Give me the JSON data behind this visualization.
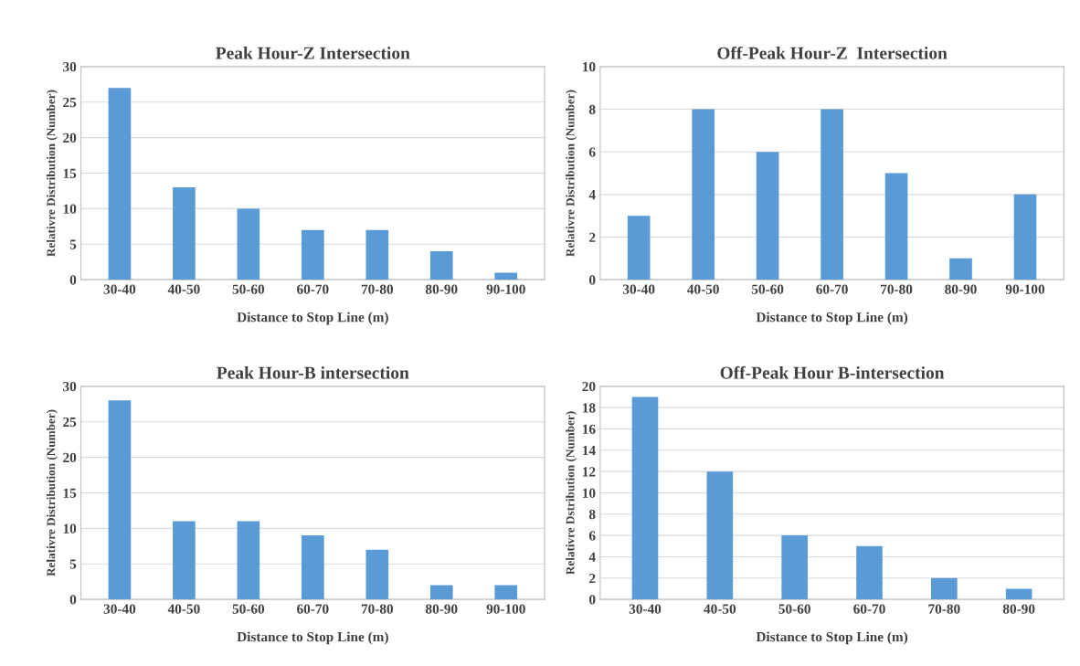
{
  "chart_data": [
    {
      "type": "bar",
      "title": "Peak Hour-Z Intersection",
      "xlabel": "Distance to Stop Line (m)",
      "ylabel": "Relativre Distribution (Number)",
      "categories": [
        "30-40",
        "40-50",
        "50-60",
        "60-70",
        "70-80",
        "80-90",
        "90-100"
      ],
      "values": [
        27,
        13,
        10,
        7,
        7,
        4,
        1
      ],
      "color": "#5b9bd5",
      "ylim": [
        0,
        30
      ],
      "yticks": [
        0,
        5,
        10,
        15,
        20,
        25,
        30
      ],
      "grid": "y"
    },
    {
      "type": "bar",
      "title": "Off-Peak Hour-Z  Intersection",
      "xlabel": "Distance to Stop Line (m)",
      "ylabel": "Relativre Distribution (Number)",
      "categories": [
        "30-40",
        "40-50",
        "50-60",
        "60-70",
        "70-80",
        "80-90",
        "90-100"
      ],
      "values": [
        3,
        8,
        6,
        8,
        5,
        1,
        4
      ],
      "color": "#5b9bd5",
      "ylim": [
        0,
        10
      ],
      "yticks": [
        0,
        2,
        4,
        6,
        8,
        10
      ],
      "grid": "y"
    },
    {
      "type": "bar",
      "title": "Peak Hour-B intersection",
      "xlabel": "Distance to Stop Line (m)",
      "ylabel": "Relativre Distribution (Number)",
      "categories": [
        "30-40",
        "40-50",
        "50-60",
        "60-70",
        "70-80",
        "80-90",
        "90-100"
      ],
      "values": [
        28,
        11,
        11,
        9,
        7,
        2,
        2
      ],
      "color": "#5b9bd5",
      "ylim": [
        0,
        30
      ],
      "yticks": [
        0,
        5,
        10,
        15,
        20,
        25,
        30
      ],
      "grid": "y"
    },
    {
      "type": "bar",
      "title": "Off-Peak Hour B-intersection",
      "xlabel": "Distance to Stop Line (m)",
      "ylabel": "Relativre Dstribution (Number)",
      "categories": [
        "30-40",
        "40-50",
        "50-60",
        "60-70",
        "70-80",
        "80-90"
      ],
      "values": [
        19,
        12,
        6,
        5,
        2,
        1
      ],
      "color": "#5b9bd5",
      "ylim": [
        0,
        20
      ],
      "yticks": [
        0,
        2,
        4,
        6,
        8,
        10,
        12,
        14,
        16,
        18,
        20
      ],
      "grid": "y"
    }
  ]
}
